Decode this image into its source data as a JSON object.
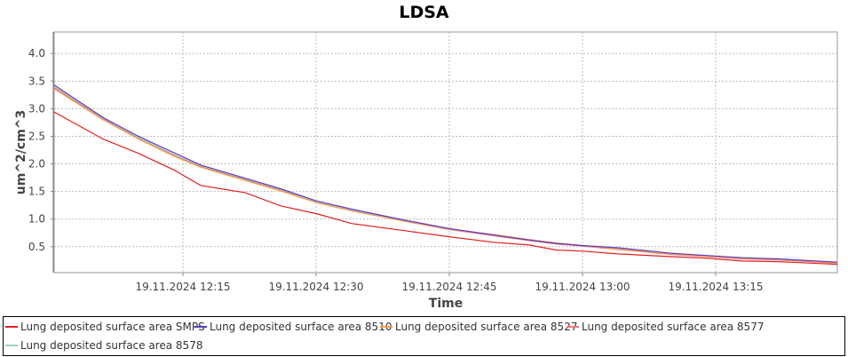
{
  "chart_data": {
    "type": "line",
    "title": "LDSA",
    "xlabel": "Time",
    "ylabel": "um^2/cm^3",
    "date": "19.11.2024",
    "xlim": [
      "12:00:30",
      "13:28:42"
    ],
    "ylim": [
      0.03,
      4.39
    ],
    "grid": true,
    "legend": "bottom",
    "xticks": [
      "19.11.2024 12:15",
      "19.11.2024 12:30",
      "19.11.2024 12:45",
      "19.11.2024 13:00",
      "19.11.2024 13:15"
    ],
    "xtick_times": [
      "12:15",
      "12:30",
      "12:45",
      "13:00",
      "13:15"
    ],
    "yticks": [
      "0.5",
      "1.0",
      "1.5",
      "2.0",
      "2.5",
      "3.0",
      "3.5",
      "4.0"
    ],
    "x": [
      "12:00:30",
      "12:06",
      "12:10",
      "12:14",
      "12:17",
      "12:22",
      "12:26",
      "12:30",
      "12:34",
      "12:40",
      "12:45",
      "12:50",
      "12:54",
      "12:57",
      "13:00",
      "13:04",
      "13:10",
      "13:14",
      "13:18",
      "13:22",
      "13:28:42"
    ],
    "series": [
      {
        "name": "Lung deposited surface area SMPS",
        "color": "#e02020",
        "values": [
          2.94,
          2.45,
          2.19,
          1.89,
          1.61,
          1.48,
          1.24,
          1.1,
          0.92,
          0.79,
          0.68,
          0.58,
          0.53,
          0.44,
          0.42,
          0.37,
          0.32,
          0.29,
          0.24,
          0.23,
          0.18
        ]
      },
      {
        "name": "Lung deposited surface area 8510",
        "color": "#5a3cc8",
        "values": [
          3.43,
          2.84,
          2.5,
          2.2,
          1.98,
          1.74,
          1.55,
          1.33,
          1.18,
          0.98,
          0.83,
          0.71,
          0.62,
          0.56,
          0.52,
          0.48,
          0.38,
          0.34,
          0.3,
          0.28,
          0.22
        ]
      },
      {
        "name": "Lung deposited surface area 8527",
        "color": "#f0a050",
        "values": [
          3.36,
          2.8,
          2.45,
          2.14,
          1.94,
          1.7,
          1.51,
          1.3,
          1.15,
          0.96,
          0.82,
          0.72,
          0.63,
          0.57,
          0.52,
          0.46,
          0.37,
          0.33,
          0.29,
          0.27,
          0.21
        ]
      },
      {
        "name": "Lung deposited surface area 8577",
        "color": "#f07878",
        "values": [
          3.38,
          2.81,
          2.46,
          2.15,
          1.95,
          1.71,
          1.52,
          1.3,
          1.15,
          0.96,
          0.81,
          0.7,
          0.61,
          0.55,
          0.51,
          0.45,
          0.36,
          0.32,
          0.28,
          0.26,
          0.2
        ]
      },
      {
        "name": "Lung deposited surface area 8578",
        "color": "#a0d0c0",
        "values": [
          3.4,
          2.82,
          2.48,
          2.17,
          1.96,
          1.72,
          1.53,
          1.31,
          1.16,
          0.97,
          0.82,
          0.71,
          0.62,
          0.56,
          0.52,
          0.46,
          0.37,
          0.33,
          0.29,
          0.27,
          0.21
        ]
      }
    ]
  }
}
